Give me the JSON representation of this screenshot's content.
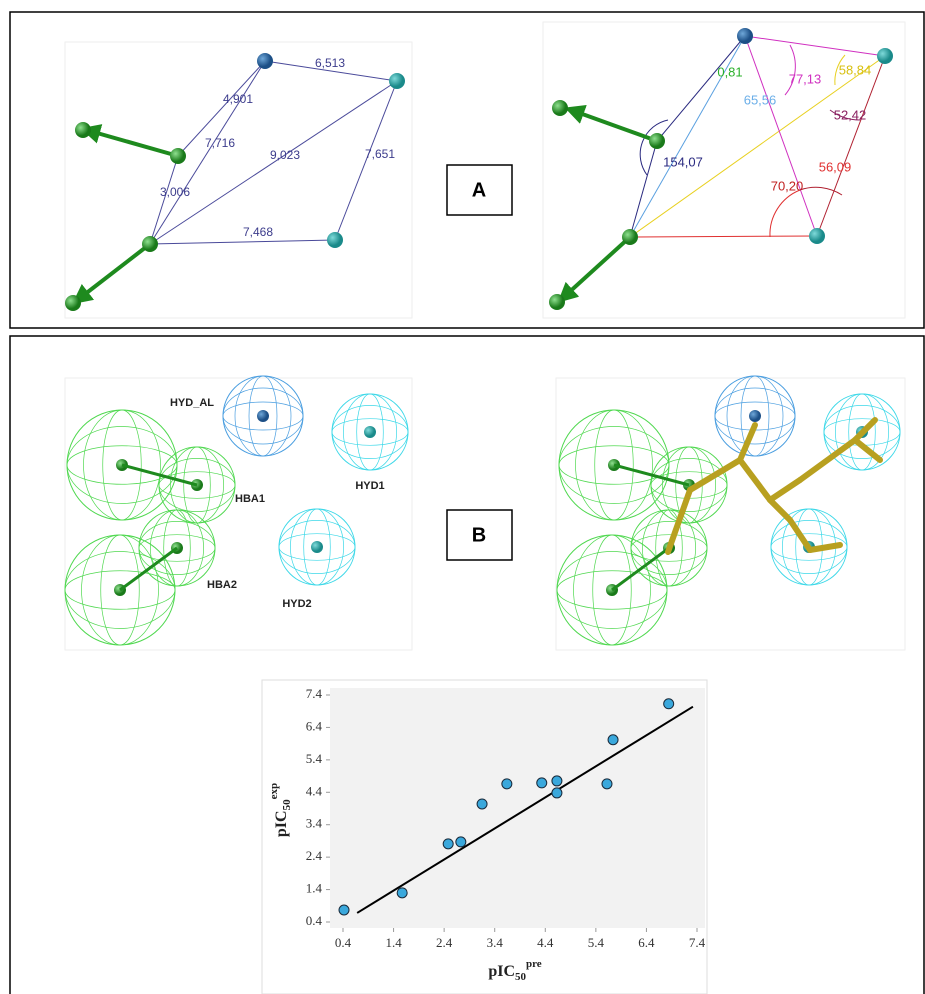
{
  "panel_a": {
    "label": "A",
    "distances": [
      "6,513",
      "4,901",
      "7,716",
      "9,023",
      "7,651",
      "3,006",
      "7,468"
    ],
    "angles": [
      "0,81",
      "65,56",
      "77,13",
      "58,84",
      "52,42",
      "154,07",
      "56,09",
      "70,20"
    ]
  },
  "panel_b": {
    "label": "B",
    "features": [
      "HYD_AL",
      "HBA1",
      "HYD1",
      "HBA2",
      "HYD2"
    ]
  },
  "chart_data": {
    "type": "scatter",
    "x_label": {
      "base": "pIC",
      "sub": "50",
      "sup": "pre"
    },
    "y_label": {
      "base": "pIC",
      "sub": "50",
      "sup": "exp"
    },
    "x": [
      0.42,
      1.57,
      2.48,
      2.73,
      3.15,
      3.64,
      4.33,
      4.63,
      4.63,
      5.62,
      5.74,
      6.84
    ],
    "y": [
      0.77,
      1.3,
      2.81,
      2.87,
      4.04,
      4.66,
      4.69,
      4.75,
      4.38,
      4.66,
      6.02,
      7.13
    ],
    "color": "#3aa8dc",
    "trendline": {
      "x": [
        0.68,
        7.32
      ],
      "y": [
        0.68,
        7.04
      ],
      "color": "#000000"
    },
    "xlim": [
      0.4,
      7.4
    ],
    "ylim": [
      0.4,
      7.4
    ],
    "xticks": [
      0.4,
      1.4,
      2.4,
      3.4,
      4.4,
      5.4,
      6.4,
      7.4
    ],
    "yticks": [
      0.4,
      1.4,
      2.4,
      3.4,
      4.4,
      5.4,
      6.4,
      7.4
    ],
    "grid": false
  }
}
